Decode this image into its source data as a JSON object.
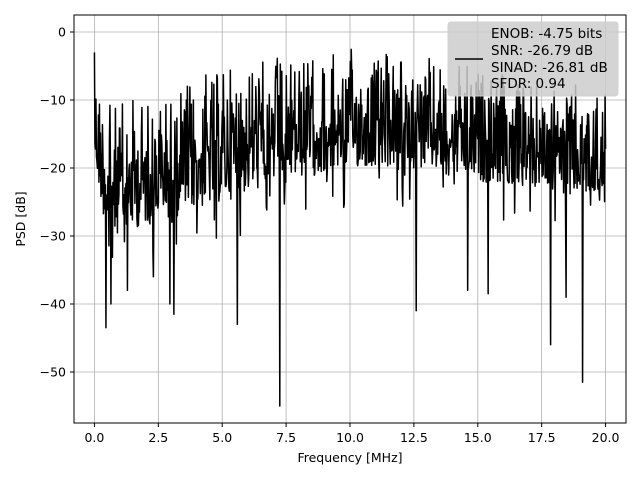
{
  "chart_data": {
    "type": "line",
    "title": "",
    "xlabel": "Frequency [MHz]",
    "ylabel": "PSD [dB]",
    "xlim": [
      -0.8,
      20.8
    ],
    "ylim": [
      -57.5,
      2.5
    ],
    "xticks": [
      0.0,
      2.5,
      5.0,
      7.5,
      10.0,
      12.5,
      15.0,
      17.5,
      20.0
    ],
    "xtick_labels": [
      "0.0",
      "2.5",
      "5.0",
      "7.5",
      "10.0",
      "12.5",
      "15.0",
      "17.5",
      "20.0"
    ],
    "yticks": [
      0,
      -10,
      -20,
      -30,
      -40,
      -50
    ],
    "ytick_labels": [
      "0",
      "−10",
      "−20",
      "−30",
      "−40",
      "−50"
    ],
    "grid": true,
    "legend_position": "top-right",
    "series": [
      {
        "color": "#000000",
        "x_range": [
          0.0,
          20.0
        ],
        "points": 1024,
        "envelope_upper_approx": [
          [
            0.0,
            -3
          ],
          [
            0.5,
            -10
          ],
          [
            1.5,
            -9
          ],
          [
            2.5,
            -8
          ],
          [
            4.0,
            -6
          ],
          [
            5.0,
            -4
          ],
          [
            6.5,
            -2
          ],
          [
            8.0,
            -3
          ],
          [
            10.0,
            -2
          ],
          [
            12.0,
            -3
          ],
          [
            14.0,
            -4
          ],
          [
            16.0,
            -6
          ],
          [
            18.0,
            -7
          ],
          [
            20.0,
            -8
          ]
        ],
        "envelope_lower_approx": [
          [
            0.0,
            -20
          ],
          [
            0.5,
            -30
          ],
          [
            2.5,
            -28
          ],
          [
            5.0,
            -25
          ],
          [
            7.5,
            -22
          ],
          [
            10.0,
            -20
          ],
          [
            12.5,
            -20
          ],
          [
            15.0,
            -22
          ],
          [
            17.5,
            -23
          ],
          [
            20.0,
            -25
          ]
        ],
        "deep_nulls": [
          [
            0.45,
            -43.5
          ],
          [
            0.65,
            -40
          ],
          [
            1.3,
            -38
          ],
          [
            2.3,
            -36
          ],
          [
            2.95,
            -40
          ],
          [
            3.1,
            -41.5
          ],
          [
            5.6,
            -43
          ],
          [
            7.25,
            -55
          ],
          [
            12.6,
            -41
          ],
          [
            14.6,
            -38
          ],
          [
            15.4,
            -38.5
          ],
          [
            17.85,
            -46
          ],
          [
            18.45,
            -39
          ],
          [
            19.1,
            -51.5
          ]
        ]
      }
    ],
    "legend": {
      "entries": [
        "ENOB: -4.75 bits",
        "SNR: -26.79 dB",
        "SINAD: -26.81 dB",
        "SFDR: 0.94"
      ]
    }
  }
}
